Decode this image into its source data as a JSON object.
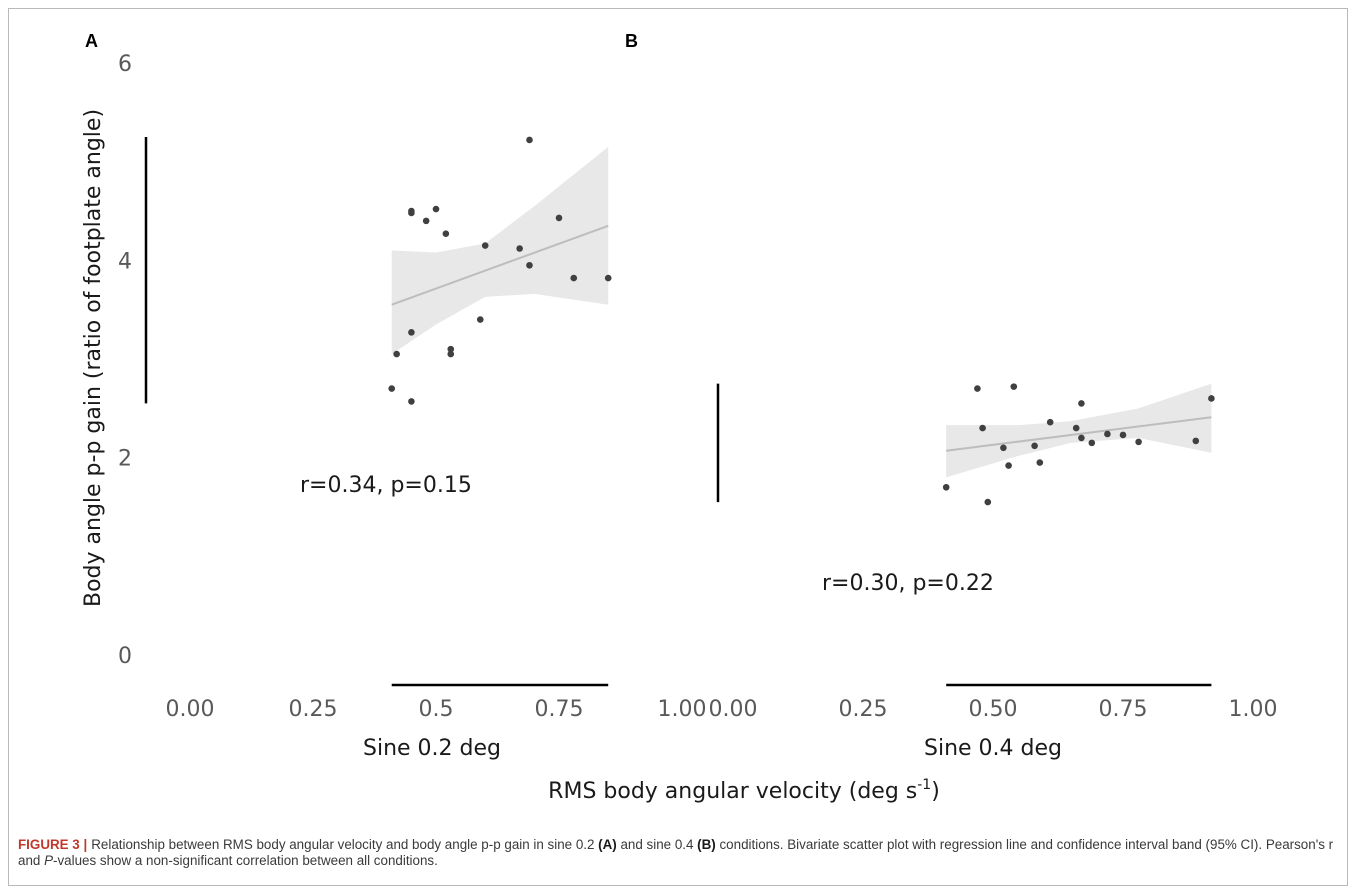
{
  "chart_data": {
    "type": "scatter",
    "ylabel": "Body angle p-p gain (ratio of footplate angle)",
    "xlabel_prefix": "RMS body angular velocity (deg s",
    "xlabel_sup": "-1",
    "xlabel_suffix": ")",
    "ylim": [
      0,
      6
    ],
    "y_ticks": [
      "0",
      "2",
      "4",
      "6"
    ],
    "colors": {
      "point": "#404040",
      "line": "#bdbdbd",
      "band": "#e8e8e8",
      "range_bar": "#000000"
    },
    "panels": [
      {
        "letter": "A",
        "category": "Sine 0.2 deg",
        "x_ticks": [
          "0.00",
          "0.25",
          "0.5",
          "0.75",
          "1.00"
        ],
        "xlim": [
          0,
          1
        ],
        "annotation": "r=0.34, p=0.15",
        "range_bar_y": [
          2.55,
          5.25
        ],
        "range_bar_x": [
          0.41,
          0.85
        ],
        "regression": {
          "x": [
            0.41,
            0.85
          ],
          "y": [
            3.55,
            4.35
          ]
        },
        "ci_band": [
          {
            "x": 0.41,
            "lo": 3.05,
            "hi": 4.1
          },
          {
            "x": 0.5,
            "lo": 3.35,
            "hi": 4.08
          },
          {
            "x": 0.6,
            "lo": 3.63,
            "hi": 4.17
          },
          {
            "x": 0.7,
            "lo": 3.66,
            "hi": 4.55
          },
          {
            "x": 0.85,
            "lo": 3.55,
            "hi": 5.15
          }
        ],
        "points": [
          {
            "x": 0.41,
            "y": 2.7
          },
          {
            "x": 0.42,
            "y": 3.05
          },
          {
            "x": 0.45,
            "y": 2.57
          },
          {
            "x": 0.45,
            "y": 3.27
          },
          {
            "x": 0.45,
            "y": 4.48
          },
          {
            "x": 0.45,
            "y": 4.5
          },
          {
            "x": 0.48,
            "y": 4.4
          },
          {
            "x": 0.5,
            "y": 4.52
          },
          {
            "x": 0.52,
            "y": 4.27
          },
          {
            "x": 0.53,
            "y": 3.05
          },
          {
            "x": 0.53,
            "y": 3.1
          },
          {
            "x": 0.59,
            "y": 3.4
          },
          {
            "x": 0.6,
            "y": 4.15
          },
          {
            "x": 0.67,
            "y": 4.12
          },
          {
            "x": 0.69,
            "y": 3.95
          },
          {
            "x": 0.69,
            "y": 5.22
          },
          {
            "x": 0.75,
            "y": 4.43
          },
          {
            "x": 0.78,
            "y": 3.82
          },
          {
            "x": 0.85,
            "y": 3.82
          }
        ]
      },
      {
        "letter": "B",
        "category": "Sine 0.4 deg",
        "x_ticks": [
          "0.00",
          "0.25",
          "0.50",
          "0.75",
          "1.00"
        ],
        "xlim": [
          0,
          1
        ],
        "annotation": "r=0.30, p=0.22",
        "range_bar_y": [
          1.55,
          2.75
        ],
        "range_bar_x": [
          0.41,
          0.92
        ],
        "regression": {
          "x": [
            0.41,
            0.92
          ],
          "y": [
            2.07,
            2.41
          ]
        },
        "ci_band": [
          {
            "x": 0.41,
            "lo": 1.8,
            "hi": 2.33
          },
          {
            "x": 0.55,
            "lo": 2.02,
            "hi": 2.33
          },
          {
            "x": 0.65,
            "lo": 2.15,
            "hi": 2.37
          },
          {
            "x": 0.78,
            "lo": 2.2,
            "hi": 2.5
          },
          {
            "x": 0.92,
            "lo": 2.05,
            "hi": 2.75
          }
        ],
        "points": [
          {
            "x": 0.41,
            "y": 1.7
          },
          {
            "x": 0.47,
            "y": 2.7
          },
          {
            "x": 0.48,
            "y": 2.3
          },
          {
            "x": 0.49,
            "y": 1.55
          },
          {
            "x": 0.52,
            "y": 2.1
          },
          {
            "x": 0.53,
            "y": 1.92
          },
          {
            "x": 0.54,
            "y": 2.72
          },
          {
            "x": 0.58,
            "y": 2.12
          },
          {
            "x": 0.59,
            "y": 1.95
          },
          {
            "x": 0.61,
            "y": 2.36
          },
          {
            "x": 0.66,
            "y": 2.3
          },
          {
            "x": 0.67,
            "y": 2.55
          },
          {
            "x": 0.67,
            "y": 2.2
          },
          {
            "x": 0.69,
            "y": 2.15
          },
          {
            "x": 0.72,
            "y": 2.24
          },
          {
            "x": 0.75,
            "y": 2.23
          },
          {
            "x": 0.78,
            "y": 2.16
          },
          {
            "x": 0.89,
            "y": 2.17
          },
          {
            "x": 0.92,
            "y": 2.6
          }
        ]
      }
    ]
  },
  "caption": {
    "label": "FIGURE 3 |",
    "t1": "Relationship between RMS body angular velocity and body angle p-p gain in sine 0.2 ",
    "a": "(A)",
    "t2": " and sine 0.4 ",
    "b": "(B)",
    "t3": " conditions. Bivariate scatter plot with regression line and confidence interval band (95% CI). Pearson's r and ",
    "p": "P",
    "t4": "-values show a non-significant correlation between all conditions."
  }
}
